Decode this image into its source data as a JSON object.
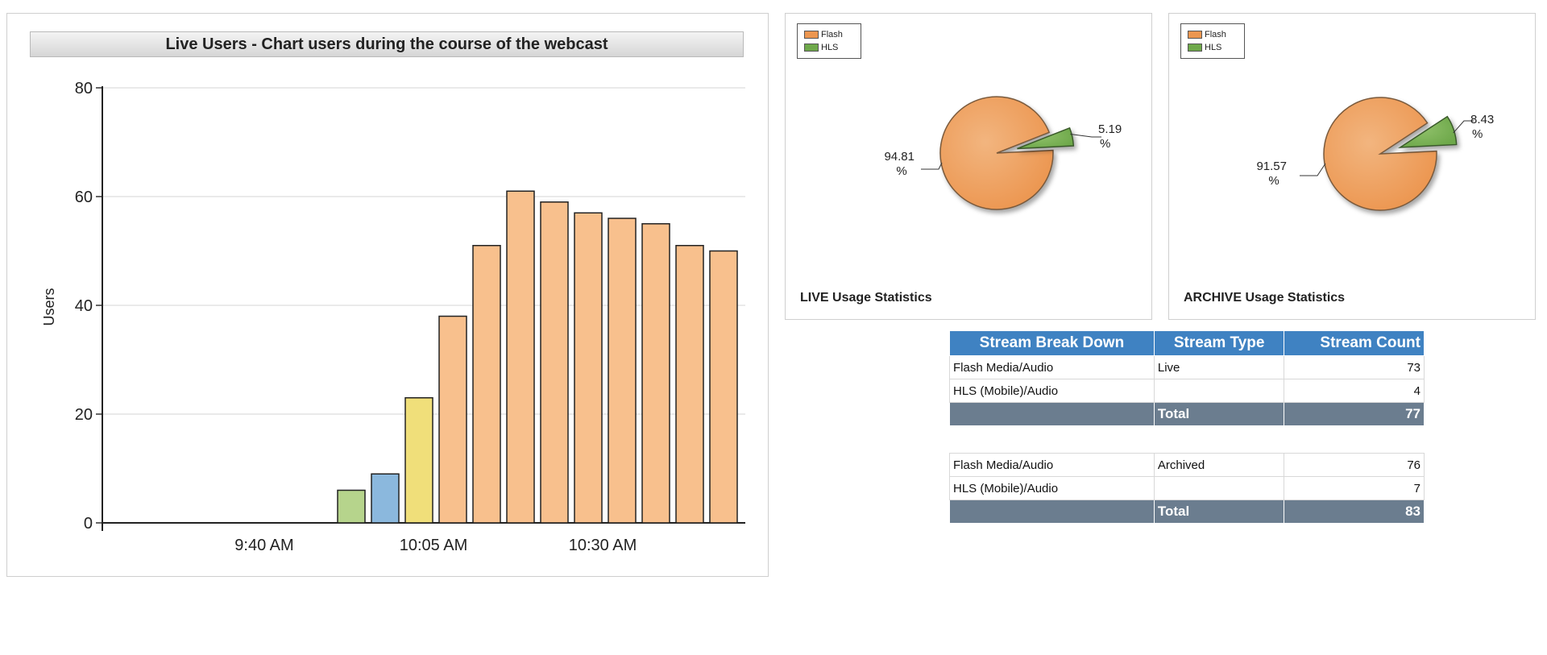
{
  "bar_chart": {
    "title": "Live Users - Chart users during the course of the webcast"
  },
  "chart_data": [
    {
      "type": "bar",
      "title": "Live Users - Chart users during the course of the webcast",
      "ylabel": "Users",
      "xlabel": "",
      "ylim": [
        0,
        80
      ],
      "yticks": [
        0,
        20,
        40,
        60,
        80
      ],
      "xtick_labels": [
        "9:40 AM",
        "10:05 AM",
        "10:30 AM"
      ],
      "grid": true,
      "values": [
        0,
        0,
        0,
        0,
        0,
        0,
        0,
        6,
        9,
        23,
        38,
        51,
        61,
        59,
        57,
        56,
        55,
        51,
        50
      ],
      "bar_colors": [
        "#f8c08d",
        "#f8c08d",
        "#f8c08d",
        "#f8c08d",
        "#f8c08d",
        "#f8c08d",
        "#f8c08d",
        "#b6d48c",
        "#8bb8dd",
        "#f0df7a",
        "#f8c08d",
        "#f8c08d",
        "#f8c08d",
        "#f8c08d",
        "#f8c08d",
        "#f8c08d",
        "#f8c08d",
        "#f8c08d",
        "#f8c08d"
      ]
    },
    {
      "type": "pie",
      "title": "LIVE Usage Statistics",
      "labels": [
        "Flash",
        "HLS"
      ],
      "values": [
        94.81,
        5.19
      ],
      "value_labels": [
        "94.81\n%",
        "5.19\n%"
      ],
      "colors": [
        "#ec9650",
        "#6ea84a"
      ],
      "legend": "top-left"
    },
    {
      "type": "pie",
      "title": "ARCHIVE Usage Statistics",
      "labels": [
        "Flash",
        "HLS"
      ],
      "values": [
        91.57,
        8.43
      ],
      "value_labels": [
        "91.57\n%",
        "8.43\n%"
      ],
      "colors": [
        "#ec9650",
        "#6ea84a"
      ],
      "legend": "top-left"
    }
  ],
  "pies": {
    "live": {
      "caption": "LIVE Usage Statistics",
      "legend": [
        "Flash",
        "HLS"
      ],
      "flash_label": "94.81",
      "hls_label": "5.19",
      "pct": "%"
    },
    "archive": {
      "caption": "ARCHIVE Usage Statistics",
      "legend": [
        "Flash",
        "HLS"
      ],
      "flash_label": "91.57",
      "hls_label": "8.43",
      "pct": "%"
    }
  },
  "stream_table": {
    "headers": [
      "Stream Break Down",
      "Stream Type",
      "Stream Count"
    ],
    "live": {
      "rows": [
        {
          "name": "Flash Media/Audio",
          "type": "Live",
          "count": "73"
        },
        {
          "name": "HLS (Mobile)/Audio",
          "type": "",
          "count": "4"
        }
      ],
      "total_label": "Total",
      "total": "77"
    },
    "archive": {
      "rows": [
        {
          "name": "Flash Media/Audio",
          "type": "Archived",
          "count": "76"
        },
        {
          "name": "HLS (Mobile)/Audio",
          "type": "",
          "count": "7"
        }
      ],
      "total_label": "Total",
      "total": "83"
    }
  },
  "colors": {
    "table_header": "#3f82c2",
    "total_row": "#6b7d8f",
    "flash": "#ec9650",
    "hls": "#6ea84a"
  }
}
